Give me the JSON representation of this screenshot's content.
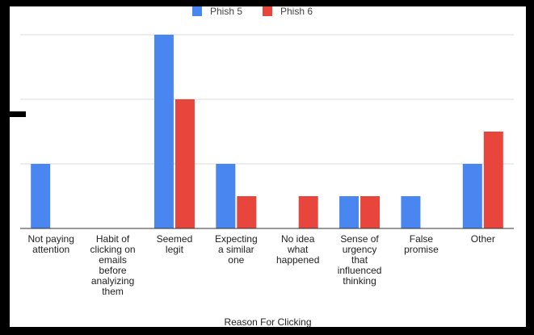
{
  "chart_data": {
    "type": "bar",
    "title": "",
    "xlabel": "Reason For Clicking",
    "ylabel": "",
    "ylim": [
      0,
      6
    ],
    "grid": true,
    "legend": "top",
    "categories": [
      [
        "Not paying",
        "attention"
      ],
      [
        "Habit of",
        "clicking on",
        "emails",
        "before",
        "analyizing",
        "them"
      ],
      [
        "Seemed",
        "legit"
      ],
      [
        "Expecting",
        "a similar",
        "one"
      ],
      [
        "No idea",
        "what",
        "happened"
      ],
      [
        "Sense of",
        "urgency",
        "that",
        "influenced",
        "thinking"
      ],
      [
        "False",
        "promise"
      ],
      [
        "Other"
      ]
    ],
    "series": [
      {
        "name": "Phish 5",
        "color": "#4a86f0",
        "values": [
          2,
          0,
          6,
          2,
          0,
          1,
          1,
          2
        ]
      },
      {
        "name": "Phish 6",
        "color": "#e8453c",
        "values": [
          0,
          0,
          4,
          1,
          1,
          1,
          0,
          3
        ]
      }
    ]
  }
}
